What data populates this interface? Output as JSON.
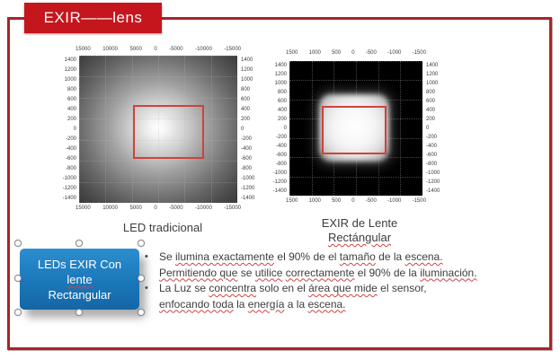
{
  "title": {
    "label": "EXIR——lens"
  },
  "charts": {
    "left": {
      "caption": "LED tradicional",
      "x_ticks": [
        "15000",
        "10000",
        "5000",
        "0",
        "-5000",
        "-10000",
        "-15000"
      ],
      "y_ticks": [
        "1400",
        "1200",
        "1000",
        "800",
        "600",
        "400",
        "200",
        "0",
        "-200",
        "-400",
        "-600",
        "-800",
        "-1000",
        "-1200",
        "-1400"
      ]
    },
    "right": {
      "caption_line1": "EXIR de Lente",
      "caption_line2": "Rectángular",
      "x_ticks": [
        "1500",
        "1000",
        "500",
        "0",
        "-500",
        "-1000",
        "-1500"
      ],
      "y_ticks": [
        "1400",
        "1200",
        "1000",
        "800",
        "600",
        "400",
        "200",
        "0",
        "-200",
        "-400",
        "-600",
        "-800",
        "-1000",
        "-1200",
        "-1400"
      ]
    }
  },
  "chart_data": [
    {
      "type": "heatmap",
      "title": "LED tradicional",
      "x_tick_labels": [
        "15000",
        "10000",
        "5000",
        "0",
        "-5000",
        "-10000",
        "-15000"
      ],
      "y_tick_labels": [
        "1400",
        "1200",
        "1000",
        "800",
        "600",
        "400",
        "200",
        "0",
        "-200",
        "-400",
        "-600",
        "-800",
        "-1000",
        "-1200",
        "-1400"
      ],
      "description_visible": "circular bright hotspot centered in plot fading radially to black; red rectangular ROI outline around center",
      "grid": "dotted"
    },
    {
      "type": "heatmap",
      "title": "EXIR de Lente Rectángular",
      "x_tick_labels": [
        "1500",
        "1000",
        "500",
        "0",
        "-500",
        "-1000",
        "-1500"
      ],
      "y_tick_labels": [
        "1400",
        "1200",
        "1000",
        "800",
        "600",
        "400",
        "200",
        "0",
        "-200",
        "-400",
        "-600",
        "-800",
        "-1000",
        "-1200",
        "-1400"
      ],
      "description_visible": "rectangular bright hotspot left-of-center on black background; red rectangular ROI outline matching hotspot",
      "grid": "dotted"
    }
  ],
  "blue_box": {
    "lines": [
      {
        "t": "LEDs EXIR Con"
      },
      {
        "t": "lente",
        "u": 1
      },
      {
        "t": "Rectangular"
      }
    ]
  },
  "bullets": [
    {
      "lines": [
        [
          {
            "t": "Se "
          },
          {
            "t": "ilumina exactamente",
            "u": 1
          },
          {
            "t": " el 90% de el "
          },
          {
            "t": "tamaño",
            "u": 1
          },
          {
            "t": " de la "
          },
          {
            "t": "escena.",
            "u": 1
          }
        ],
        [
          {
            "t": "Permitiendo que",
            "u": 1
          },
          {
            "t": " se "
          },
          {
            "t": "utilice",
            "u": 1
          },
          {
            "t": " "
          },
          {
            "t": "correctamente",
            "u": 1
          },
          {
            "t": " el 90% de la "
          },
          {
            "t": "iluminación.",
            "u": 1
          }
        ]
      ]
    },
    {
      "lines": [
        [
          {
            "t": "La Luz se "
          },
          {
            "t": "concentra",
            "u": 1
          },
          {
            "t": " solo en el "
          },
          {
            "t": "área que mide",
            "u": 1
          },
          {
            "t": " el sensor,"
          }
        ],
        [
          {
            "t": "enfocando toda",
            "u": 1
          },
          {
            "t": " la "
          },
          {
            "t": "energía",
            "u": 1
          },
          {
            "t": " a la "
          },
          {
            "t": "escena.",
            "u": 1
          }
        ]
      ]
    }
  ],
  "colors": {
    "slide_border": "#a7242a",
    "title_bg": "#c4161c",
    "roi_red": "#d2413a",
    "shape_blue": "#1b77ba",
    "squiggle": "#cc4444"
  }
}
